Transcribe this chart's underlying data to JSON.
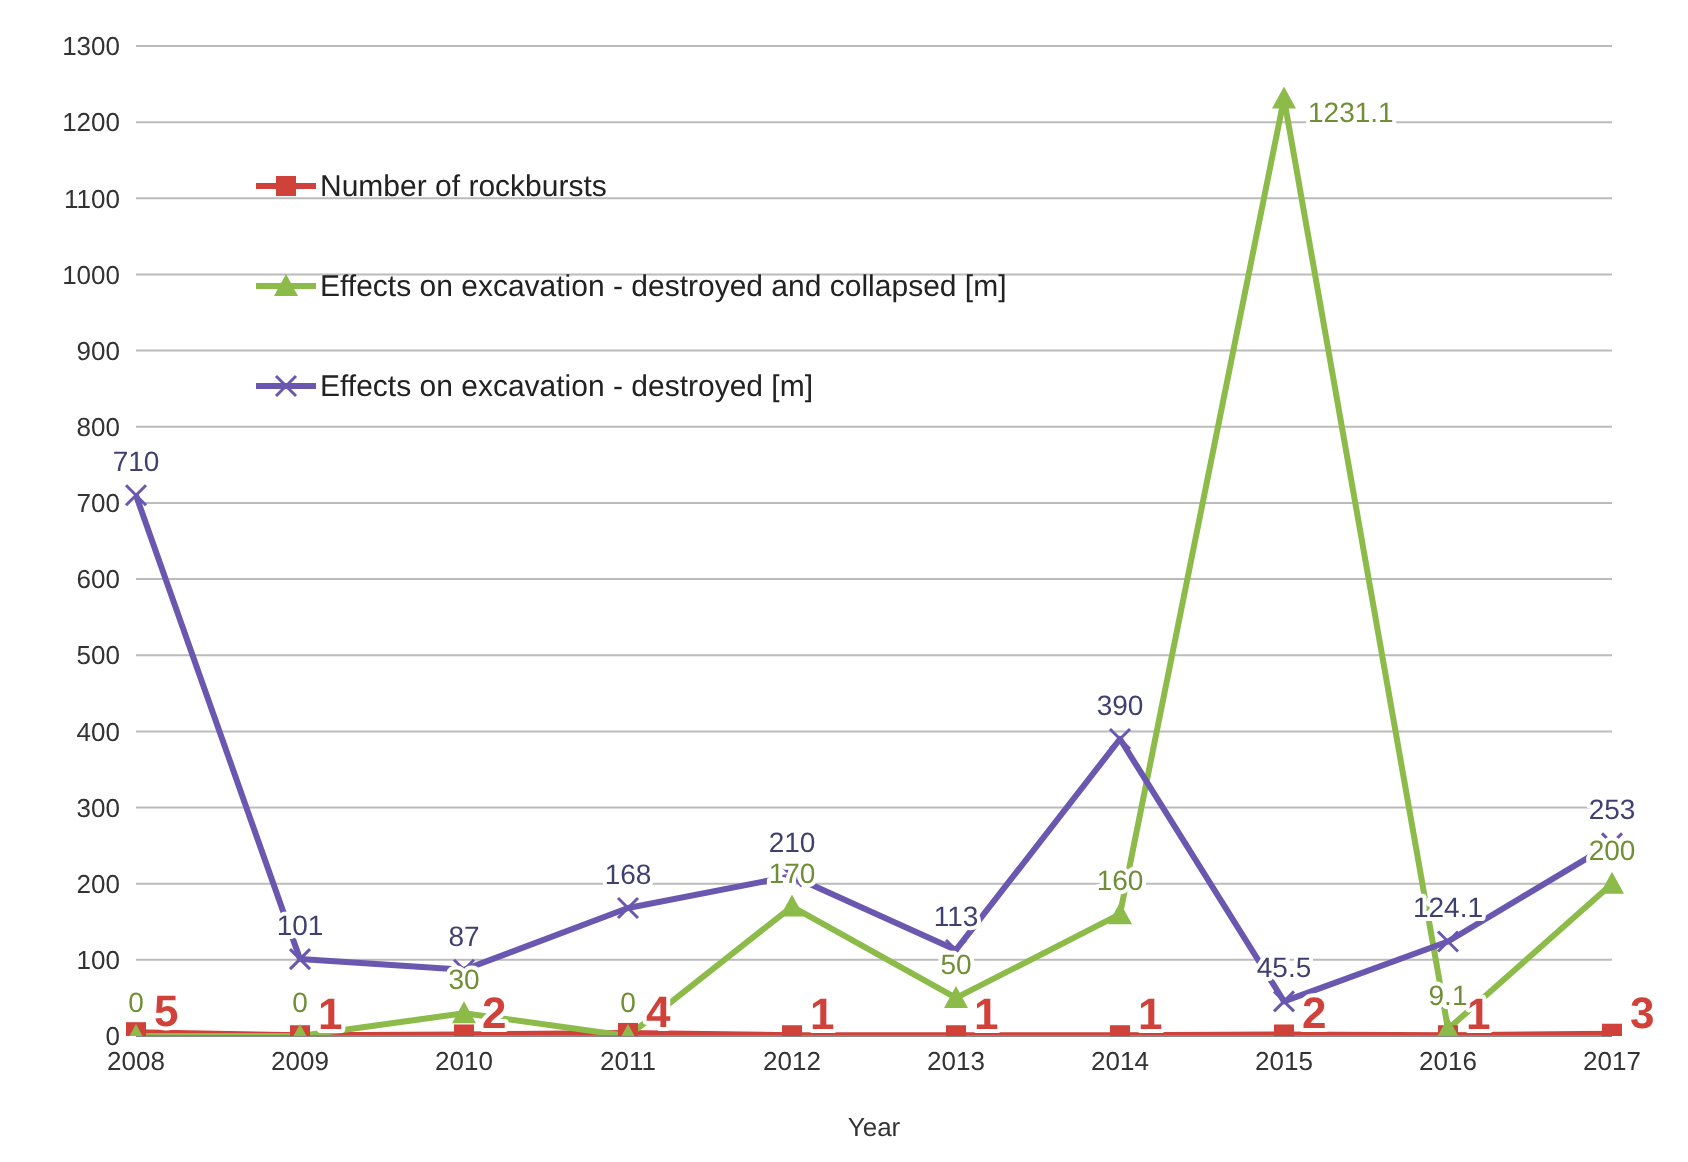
{
  "chart_data": {
    "type": "line",
    "xlabel": "Year",
    "categories": [
      "2008",
      "2009",
      "2010",
      "2011",
      "2012",
      "2013",
      "2014",
      "2015",
      "2016",
      "2017"
    ],
    "series": [
      {
        "name": "Number of rockbursts",
        "color": "#d0413a",
        "marker": "square",
        "values": [
          5,
          1,
          2,
          4,
          1,
          1,
          1,
          2,
          1,
          3
        ]
      },
      {
        "name": "Effects on excavation - destroyed and collapsed [m]",
        "color": "#8cbb4a",
        "marker": "triangle",
        "values": [
          0,
          0,
          30,
          0,
          170,
          50,
          160,
          1231.1,
          9.1,
          200
        ]
      },
      {
        "name": "Effects on excavation - destroyed [m]",
        "color": "#6a58b0",
        "marker": "cross",
        "values": [
          710,
          101,
          87,
          168,
          210,
          113,
          390,
          45.5,
          124.1,
          253
        ]
      }
    ],
    "ylim": [
      0,
      1300
    ],
    "yticks": [
      0,
      100,
      200,
      300,
      400,
      500,
      600,
      700,
      800,
      900,
      1000,
      1100,
      1200,
      1300
    ],
    "grid": "y",
    "legend": "top left",
    "data_labels": true,
    "line_style": "solid"
  }
}
